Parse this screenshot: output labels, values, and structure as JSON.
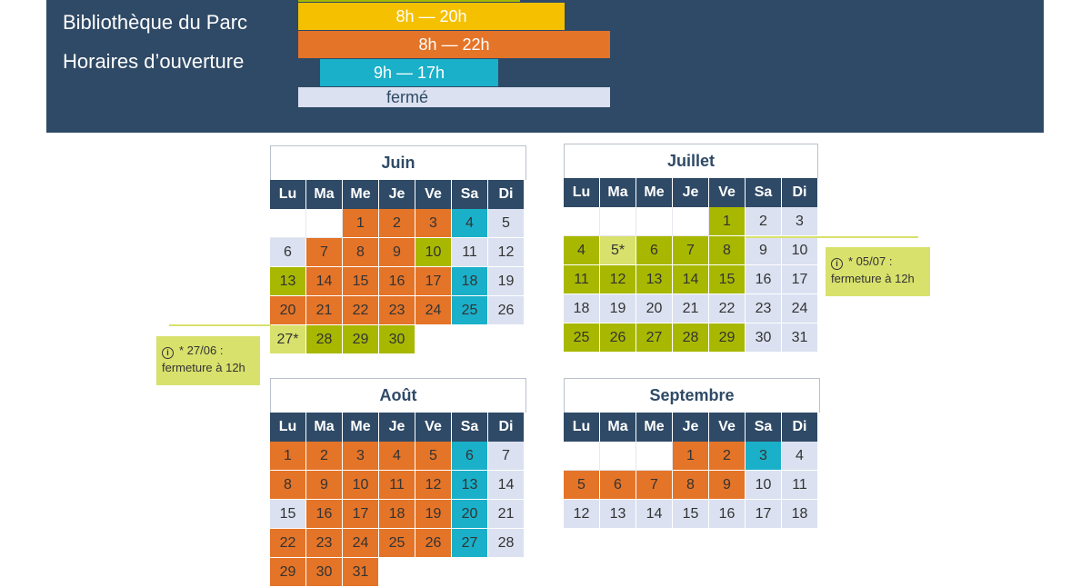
{
  "header": {
    "title_line1": "Bibliothèque du Parc",
    "title_line2": "Horaires d’ouverture",
    "legend": [
      {
        "key": "yellow",
        "label": "8h — 20h",
        "color": "#f5c000"
      },
      {
        "key": "orange",
        "label": "8h — 22h",
        "color": "#e47428"
      },
      {
        "key": "teal",
        "label": "9h — 17h",
        "color": "#1ab0c9"
      },
      {
        "key": "closed",
        "label": "fermé",
        "color": "#dbe1f0"
      }
    ]
  },
  "colors": {
    "header_bg": "#2f4a66",
    "green": "#a8b800",
    "lightgreen": "#d8e16c",
    "orange": "#e47428",
    "teal": "#1ab0c9",
    "closed": "#dbe1f0",
    "empty": "#ffffff"
  },
  "weekdays": [
    "Lu",
    "Ma",
    "Me",
    "Je",
    "Ve",
    "Sa",
    "Di"
  ],
  "calendars": [
    {
      "id": "juin",
      "title": "Juin",
      "offset": 2,
      "days": [
        "1",
        "2",
        "3",
        "4",
        "5",
        "6",
        "7",
        "8",
        "9",
        "10",
        "11",
        "12",
        "13",
        "14",
        "15",
        "16",
        "17",
        "18",
        "19",
        "20",
        "21",
        "22",
        "23",
        "24",
        "25",
        "26",
        "27*",
        "28",
        "29",
        "30"
      ],
      "types": [
        "orange",
        "orange",
        "orange",
        "teal",
        "closed",
        "closed",
        "orange",
        "orange",
        "orange",
        "green",
        "closed",
        "closed",
        "green",
        "orange",
        "orange",
        "orange",
        "orange",
        "teal",
        "closed",
        "orange",
        "orange",
        "orange",
        "orange",
        "orange",
        "teal",
        "closed",
        "lightgreen",
        "green",
        "green",
        "green"
      ]
    },
    {
      "id": "juillet",
      "title": "Juillet",
      "offset": 4,
      "days": [
        "1",
        "2",
        "3",
        "4",
        "5*",
        "6",
        "7",
        "8",
        "9",
        "10",
        "11",
        "12",
        "13",
        "14",
        "15",
        "16",
        "17",
        "18",
        "19",
        "20",
        "21",
        "22",
        "23",
        "24",
        "25",
        "26",
        "27",
        "28",
        "29",
        "30",
        "31"
      ],
      "types": [
        "green",
        "closed",
        "closed",
        "green",
        "lightgreen",
        "green",
        "green",
        "green",
        "closed",
        "closed",
        "green",
        "green",
        "green",
        "green",
        "green",
        "closed",
        "closed",
        "closed",
        "closed",
        "closed",
        "closed",
        "closed",
        "closed",
        "closed",
        "green",
        "green",
        "green",
        "green",
        "green",
        "closed",
        "closed"
      ]
    },
    {
      "id": "aout",
      "title": "Août",
      "offset": 0,
      "days": [
        "1",
        "2",
        "3",
        "4",
        "5",
        "6",
        "7",
        "8",
        "9",
        "10",
        "11",
        "12",
        "13",
        "14",
        "15",
        "16",
        "17",
        "18",
        "19",
        "20",
        "21",
        "22",
        "23",
        "24",
        "25",
        "26",
        "27",
        "28",
        "29",
        "30",
        "31"
      ],
      "types": [
        "orange",
        "orange",
        "orange",
        "orange",
        "orange",
        "teal",
        "closed",
        "orange",
        "orange",
        "orange",
        "orange",
        "orange",
        "teal",
        "closed",
        "closed",
        "orange",
        "orange",
        "orange",
        "orange",
        "teal",
        "closed",
        "orange",
        "orange",
        "orange",
        "orange",
        "orange",
        "teal",
        "closed",
        "orange",
        "orange",
        "orange"
      ]
    },
    {
      "id": "septembre",
      "title": "Septembre",
      "offset": 3,
      "days": [
        "1",
        "2",
        "3",
        "4",
        "5",
        "6",
        "7",
        "8",
        "9",
        "10",
        "11",
        "12",
        "13",
        "14",
        "15",
        "16",
        "17",
        "18"
      ],
      "types": [
        "orange",
        "orange",
        "teal",
        "closed",
        "orange",
        "orange",
        "orange",
        "orange",
        "orange",
        "closed",
        "closed",
        "closed",
        "closed",
        "closed",
        "closed",
        "closed",
        "closed",
        "closed"
      ]
    }
  ],
  "notes": [
    {
      "id": "note-juin",
      "icon": "info-icon",
      "line1": "* 27/06 :",
      "line2": "fermeture à 12h"
    },
    {
      "id": "note-juillet",
      "icon": "info-icon",
      "line1": "* 05/07 :",
      "line2": "fermeture à 12h"
    }
  ]
}
